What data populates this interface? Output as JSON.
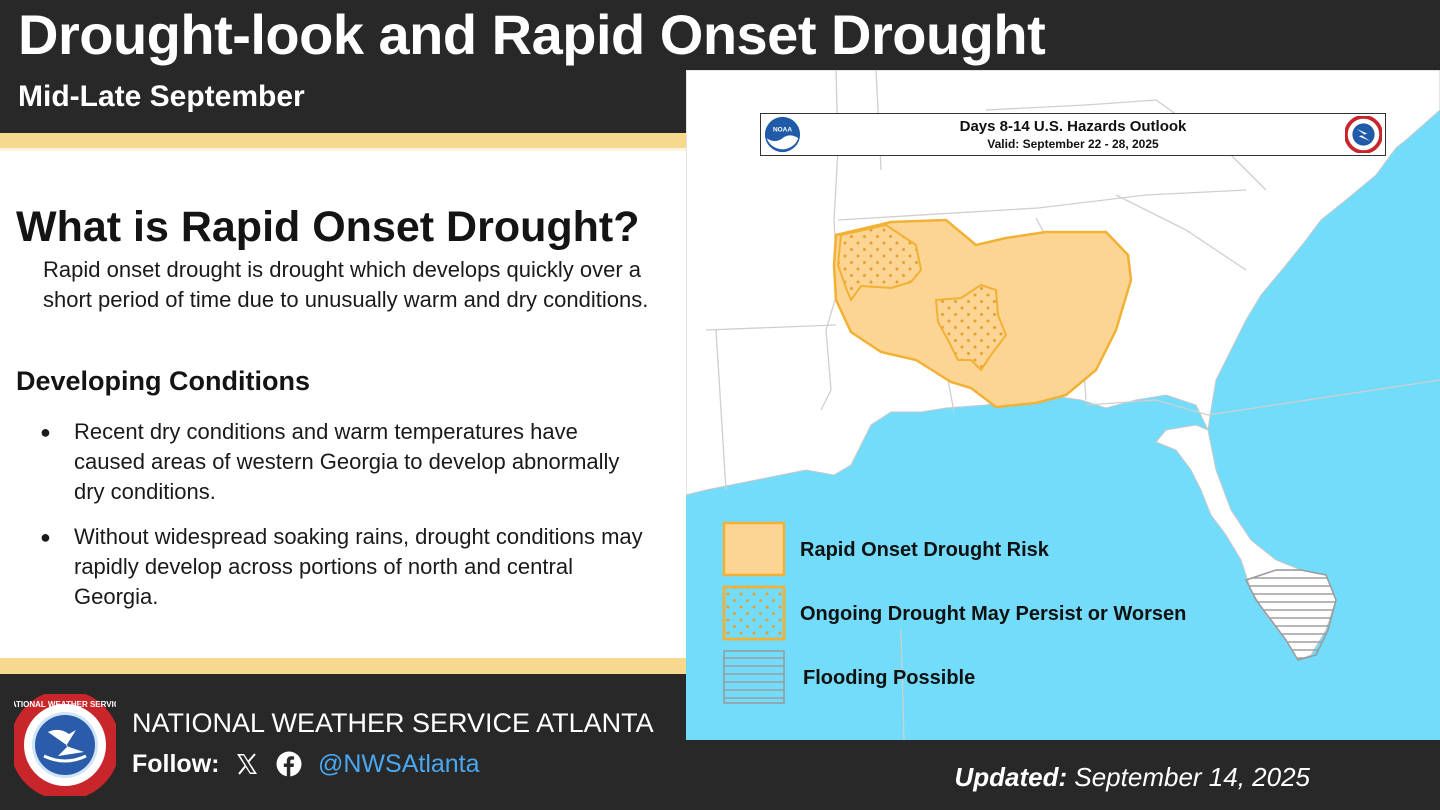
{
  "header": {
    "title": "Drought-look and Rapid Onset Drought",
    "subtitle": "Mid-Late September"
  },
  "info": {
    "question": "What is Rapid Onset Drought?",
    "definition": "Rapid onset drought is drought which develops quickly over a short period of time due to unusually warm and dry conditions.",
    "developing_heading": "Developing Conditions",
    "bullets": [
      "Recent dry conditions and warm temperatures have caused areas of western Georgia to develop abnormally dry conditions.",
      "Without widespread soaking rains, drought conditions may rapidly develop across portions of north and central Georgia."
    ]
  },
  "map": {
    "outlook_title": "Days 8-14 U.S. Hazards Outlook",
    "valid": "Valid: September 22 - 28, 2025",
    "noaa_logo_text": "NOAA",
    "legend": [
      {
        "label": "Rapid Onset Drought Risk",
        "pattern": "solid"
      },
      {
        "label": "Ongoing Drought May Persist or Worsen",
        "pattern": "dots"
      },
      {
        "label": "Flooding Possible",
        "pattern": "horizontal-lines"
      }
    ],
    "colors": {
      "water": "#73dcfb",
      "land": "#ffffff",
      "risk_fill": "#fcd594",
      "risk_border": "#f2b134",
      "dots": "#e7a02b",
      "flood_lines": "#9a9a9a"
    }
  },
  "footer": {
    "office": "NATIONAL WEATHER SERVICE ATLANTA",
    "follow_label": "Follow:",
    "handle": "@NWSAtlanta",
    "updated_label": "Updated:",
    "updated_date": "September 14, 2025",
    "logo_text": "NATIONAL WEATHER SERVICE"
  },
  "theme": {
    "background": "#282828",
    "stripe": "#f6d98c",
    "panel": "#ffffff",
    "handle_color": "#4aa8f2"
  }
}
